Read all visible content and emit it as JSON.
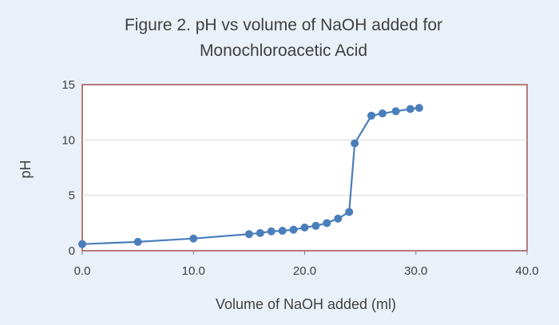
{
  "chart_data": {
    "type": "scatter",
    "title": "Figure 2. pH vs volume of NaOH added for Monochloroacetic Acid",
    "title_lines": [
      "Figure 2. pH vs volume of NaOH added for",
      "Monochloroacetic Acid"
    ],
    "xlabel": "Volume of NaOH added (ml)",
    "ylabel": "pH",
    "xlim": [
      0,
      40
    ],
    "ylim": [
      0,
      15
    ],
    "x_ticks": [
      "0.0",
      "10.0",
      "20.0",
      "30.0",
      "40.0"
    ],
    "y_ticks": [
      "0",
      "5",
      "10",
      "15"
    ],
    "grid": "horizontal",
    "legend": "none",
    "colors": {
      "series": "#4a7ebb",
      "plot_border": "#a05050",
      "grid": "#d9d9d9",
      "plot_background": "#ffffff"
    },
    "series": [
      {
        "x": [
          0,
          5,
          10,
          15,
          16,
          17,
          18,
          19,
          20,
          21,
          22,
          23,
          24,
          24.5,
          26,
          27,
          28.2,
          29.5,
          30.3
        ],
        "y": [
          0.6,
          0.8,
          1.1,
          1.5,
          1.6,
          1.75,
          1.8,
          1.9,
          2.1,
          2.25,
          2.5,
          2.9,
          3.5,
          9.7,
          12.2,
          12.4,
          12.6,
          12.8,
          12.9
        ]
      }
    ]
  }
}
